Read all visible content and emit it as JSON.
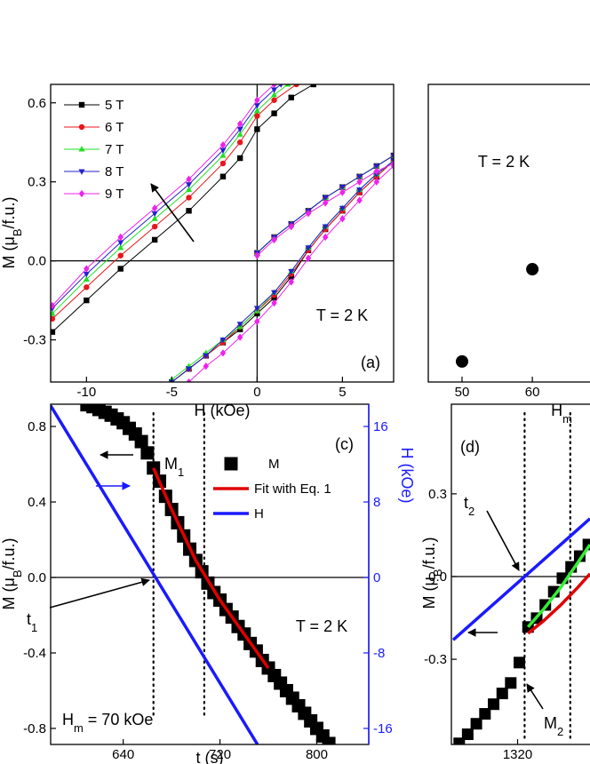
{
  "chart_data": [
    {
      "type": "line",
      "xlabel": "H (kOe)",
      "ylabel": [
        "M (μ",
        "B",
        "/f.u.)"
      ],
      "xlim": [
        -12.1,
        8.0
      ],
      "ylim": [
        -0.46,
        0.67
      ],
      "xticks": [
        -10,
        -5,
        0,
        5
      ],
      "yticks": [
        -0.3,
        {
          "value": 0,
          "label": "0.0"
        },
        0.3,
        0.6
      ],
      "zero_lines": "xy",
      "legend": true,
      "annotations": [
        "T = 2 K",
        "(a)"
      ],
      "series": [
        {
          "name": "5 T",
          "color": "#000000",
          "style": "line-markers",
          "marker": "square",
          "x": [
            -12,
            -10,
            -8,
            -6,
            -4,
            -2,
            -1,
            0,
            1,
            2,
            3.3,
            null,
            0,
            1,
            2,
            3,
            4,
            5,
            6,
            7,
            8,
            null,
            -5,
            -4,
            -3,
            -2,
            -1,
            0,
            1,
            2,
            3,
            4,
            5,
            6,
            7,
            8
          ],
          "values": [
            -0.27,
            -0.15,
            -0.03,
            0.08,
            0.19,
            0.32,
            0.39,
            0.5,
            0.56,
            0.62,
            0.67,
            null,
            0.03,
            0.09,
            0.14,
            0.19,
            0.24,
            0.28,
            0.32,
            0.36,
            0.4,
            null,
            -0.46,
            -0.41,
            -0.36,
            -0.31,
            -0.26,
            -0.2,
            -0.14,
            -0.06,
            0.04,
            0.12,
            0.19,
            0.26,
            0.32,
            0.38
          ]
        },
        {
          "name": "6 T",
          "color": "#e8161b",
          "style": "line-markers",
          "marker": "circle",
          "x": [
            -12,
            -10,
            -8,
            -6,
            -4,
            -2,
            -1,
            0,
            1,
            2.3,
            null,
            0,
            1,
            2,
            3,
            4,
            5,
            6,
            7,
            8,
            null,
            -5,
            -4,
            -3,
            -2,
            -1,
            0,
            1,
            2,
            3,
            4,
            5,
            6,
            7,
            8
          ],
          "values": [
            -0.22,
            -0.1,
            0.02,
            0.13,
            0.24,
            0.37,
            0.45,
            0.55,
            0.61,
            0.67,
            null,
            0.03,
            0.09,
            0.14,
            0.19,
            0.24,
            0.28,
            0.32,
            0.36,
            0.4,
            null,
            -0.46,
            -0.41,
            -0.36,
            -0.31,
            -0.25,
            -0.19,
            -0.13,
            -0.05,
            0.04,
            0.12,
            0.19,
            0.26,
            0.32,
            0.38
          ]
        },
        {
          "name": "7 T",
          "color": "#22e022",
          "style": "line-markers",
          "marker": "triangle-up",
          "x": [
            -12,
            -10,
            -8,
            -6,
            -4,
            -2,
            -1,
            0,
            1,
            1.8,
            null,
            0,
            1,
            2,
            3,
            4,
            5,
            6,
            7,
            8,
            null,
            -5,
            -4,
            -3,
            -2,
            -1,
            0,
            1,
            2,
            3,
            4,
            5,
            6,
            7,
            8
          ],
          "values": [
            -0.2,
            -0.07,
            0.05,
            0.16,
            0.27,
            0.4,
            0.48,
            0.57,
            0.63,
            0.67,
            null,
            0.03,
            0.09,
            0.14,
            0.19,
            0.24,
            0.28,
            0.32,
            0.36,
            0.4,
            null,
            -0.45,
            -0.4,
            -0.35,
            -0.3,
            -0.25,
            -0.19,
            -0.12,
            -0.04,
            0.05,
            0.13,
            0.2,
            0.27,
            0.33,
            0.38
          ]
        },
        {
          "name": "8 T",
          "color": "#2222cc",
          "style": "line-markers",
          "marker": "triangle-down",
          "x": [
            -12,
            -10,
            -8,
            -6,
            -4,
            -2,
            -1,
            0,
            1,
            1.4,
            null,
            0,
            1,
            2,
            3,
            4,
            5,
            6,
            7,
            8,
            null,
            -5,
            -4,
            -3,
            -2,
            -1,
            0,
            1,
            2,
            3,
            4,
            5,
            6,
            7,
            8
          ],
          "values": [
            -0.18,
            -0.05,
            0.07,
            0.18,
            0.29,
            0.42,
            0.5,
            0.59,
            0.65,
            0.67,
            null,
            0.03,
            0.09,
            0.14,
            0.19,
            0.24,
            0.28,
            0.32,
            0.36,
            0.4,
            null,
            -0.46,
            -0.41,
            -0.36,
            -0.3,
            -0.24,
            -0.18,
            -0.12,
            -0.04,
            0.05,
            0.13,
            0.2,
            0.27,
            0.33,
            0.38
          ]
        },
        {
          "name": "9 T",
          "color": "#ee22ee",
          "style": "line-markers",
          "marker": "diamond",
          "x": [
            -12,
            -10,
            -8,
            -6,
            -4,
            -2,
            -1,
            0,
            1,
            null,
            0,
            1,
            2,
            3,
            4,
            5,
            6,
            7,
            8,
            null,
            -4,
            -3,
            -2,
            -1,
            0,
            1,
            2,
            3,
            4,
            5,
            6,
            7,
            8
          ],
          "values": [
            -0.17,
            -0.03,
            0.09,
            0.2,
            0.31,
            0.44,
            0.52,
            0.61,
            0.67,
            null,
            0.02,
            0.08,
            0.13,
            0.18,
            0.22,
            0.26,
            0.3,
            0.34,
            0.37,
            null,
            -0.46,
            -0.4,
            -0.35,
            -0.29,
            -0.23,
            -0.16,
            -0.08,
            0.01,
            0.09,
            0.16,
            0.23,
            0.3,
            0.36
          ]
        }
      ]
    },
    {
      "type": "scatter",
      "xlabel": [
        "H",
        "m"
      ],
      "xlim": [
        45.2,
        68.2
      ],
      "ylim": [
        0,
        1
      ],
      "xticks": [
        50,
        60
      ],
      "annotations": [
        "T = 2 K"
      ],
      "series": [
        {
          "color": "#000000",
          "style": "markers",
          "marker": "circle",
          "x": [
            50,
            60
          ],
          "values": [
            0.069,
            0.379
          ]
        }
      ]
    },
    {
      "type": "line",
      "xlabel": "t (s)",
      "ylabel": [
        "M (μ",
        "B",
        "/f.u.)"
      ],
      "y2label": "H (kOe)",
      "y2color": "#1a1aff",
      "xlim": [
        580,
        843
      ],
      "ylim": [
        -0.885,
        0.918
      ],
      "y2lim": [
        -17.7,
        18.36
      ],
      "xticks": [
        640,
        720,
        800
      ],
      "yticks": [
        -0.8,
        -0.4,
        {
          "value": 0,
          "label": "0.0"
        },
        0.4,
        0.8
      ],
      "y2ticks": [
        -16,
        -8,
        0,
        8,
        16
      ],
      "zero_lines": "y",
      "legend": true,
      "vlines": [
        665,
        707
      ],
      "annotations": [
        "(c)",
        [
          "M",
          "1"
        ],
        [
          "t",
          "1"
        ],
        "T = 2 K",
        [
          "H",
          "m",
          " = 70 kOe"
        ]
      ],
      "series": [
        {
          "name": "M",
          "color": "#000000",
          "style": "markers",
          "marker": "square",
          "x": [
            610,
            615,
            620,
            625,
            630,
            635,
            640,
            645,
            650,
            655,
            660,
            665,
            670,
            675,
            680,
            685,
            690,
            695,
            700,
            705,
            710,
            715,
            720,
            725,
            730,
            735,
            740,
            745,
            750,
            755,
            760,
            765,
            770,
            775,
            780,
            785,
            790,
            795,
            800,
            805,
            810
          ],
          "values": [
            0.915,
            0.905,
            0.89,
            0.875,
            0.86,
            0.84,
            0.82,
            0.79,
            0.76,
            0.72,
            0.66,
            0.58,
            0.51,
            0.43,
            0.36,
            0.29,
            0.22,
            0.15,
            0.09,
            0.03,
            -0.03,
            -0.08,
            -0.12,
            -0.17,
            -0.21,
            -0.26,
            -0.3,
            -0.35,
            -0.39,
            -0.44,
            -0.48,
            -0.52,
            -0.56,
            -0.6,
            -0.64,
            -0.68,
            -0.72,
            -0.76,
            -0.8,
            -0.84,
            -0.88
          ]
        },
        {
          "name": "Fit with Eq. 1",
          "color": "#e00000",
          "style": "line",
          "x": [
            665,
            680,
            700,
            720,
            740,
            760
          ],
          "values": [
            0.58,
            0.36,
            0.09,
            -0.12,
            -0.3,
            -0.48
          ]
        },
        {
          "name": "H",
          "color": "#1a1aff",
          "style": "line",
          "axis": "y2",
          "x": [
            580,
            751
          ],
          "values": [
            18.2,
            -17.7
          ]
        }
      ]
    },
    {
      "type": "line",
      "ylabel": [
        "M (μ",
        "B",
        "/f.u.)"
      ],
      "xlim": [
        1279.4,
        1364.4
      ],
      "ylim": [
        -0.609,
        0.625
      ],
      "xticks": [
        1320
      ],
      "yticks": [
        -0.3,
        {
          "value": 0,
          "label": "0.0"
        },
        0.3
      ],
      "zero_lines": "y",
      "vlines": [
        1324.3,
        1352.3
      ],
      "annotations": [
        "(d)",
        [
          "t",
          "2"
        ],
        [
          "M",
          "2"
        ]
      ],
      "series": [
        {
          "color": "#000000",
          "style": "markers",
          "marker": "square",
          "x": [
            1284.2,
            1289.4,
            1294.7,
            1300.0,
            1305.3,
            1310.6,
            1315.8,
            1321.1,
            1326.4,
            1331.7,
            1337.0,
            1342.2,
            1347.5,
            1352.8,
            1358.1,
            1363.4
          ],
          "values": [
            -0.605,
            -0.572,
            -0.534,
            -0.498,
            -0.463,
            -0.424,
            -0.386,
            -0.312,
            -0.183,
            -0.151,
            -0.103,
            -0.055,
            -0.006,
            0.035,
            0.074,
            0.116
          ]
        },
        {
          "color": "#e00000",
          "style": "line",
          "x": [
            1326.4,
            1335.9,
            1346.5,
            1357.0,
            1364.4
          ],
          "values": [
            -0.206,
            -0.161,
            -0.103,
            -0.039,
            0.01
          ]
        },
        {
          "color": "#33ee33",
          "style": "line",
          "x": [
            1326.4,
            1335.9,
            1346.5,
            1357.0,
            1364.4
          ],
          "values": [
            -0.183,
            -0.119,
            -0.039,
            0.051,
            0.116
          ]
        },
        {
          "color": "#1a1aff",
          "style": "line",
          "x": [
            1280.5,
            1364.4
          ],
          "values": [
            -0.23,
            0.21
          ]
        }
      ]
    }
  ]
}
